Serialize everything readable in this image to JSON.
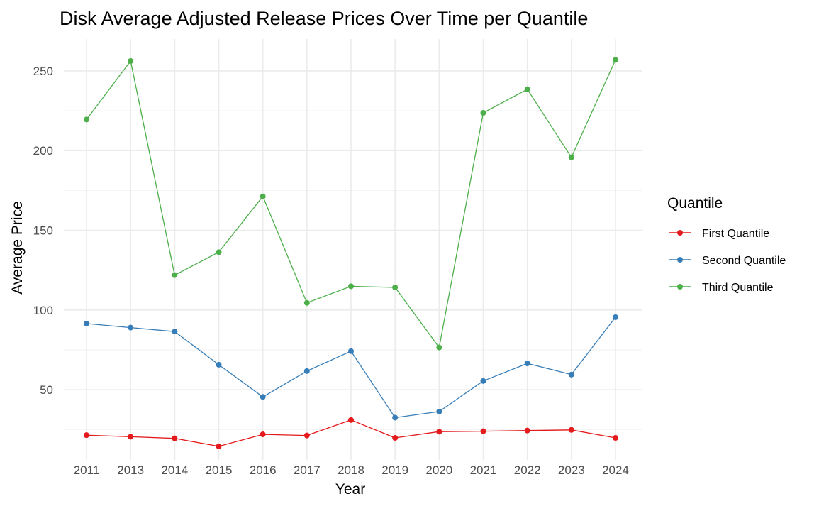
{
  "chart_data": {
    "type": "line",
    "title": "Disk Average Adjusted Release Prices Over Time per Quantile",
    "xlabel": "Year",
    "ylabel": "Average Price",
    "categories": [
      "2011",
      "2013",
      "2014",
      "2015",
      "2016",
      "2017",
      "2018",
      "2019",
      "2020",
      "2021",
      "2022",
      "2023",
      "2024"
    ],
    "ylim": [
      6,
      270
    ],
    "y_ticks": [
      50,
      100,
      150,
      200,
      250
    ],
    "grid": true,
    "legend": {
      "title": "Quantile",
      "position": "right"
    },
    "series": [
      {
        "name": "First Quantile",
        "color": "#e41a1c",
        "values": [
          21.5,
          20.5,
          19.5,
          14.5,
          22,
          21.3,
          31,
          19.8,
          23.7,
          24,
          24.4,
          24.8,
          19.8
        ]
      },
      {
        "name": "Second Quantile",
        "color": "#377eb8",
        "values": [
          91.5,
          89,
          86.5,
          65.7,
          45.5,
          61.7,
          74.2,
          32.5,
          36.3,
          55.5,
          66.5,
          59.5,
          95.5
        ]
      },
      {
        "name": "Third Quantile",
        "color": "#4daf4a",
        "values": [
          219.5,
          256.2,
          121.9,
          136.3,
          171.3,
          104.5,
          114.9,
          114.2,
          76.5,
          223.7,
          238.5,
          195.8,
          256.9
        ]
      }
    ]
  }
}
